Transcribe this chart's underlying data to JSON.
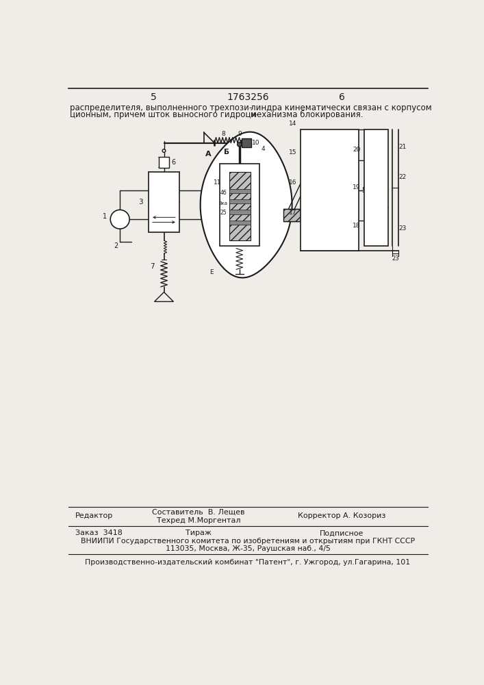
{
  "page_num_left": "5",
  "patent_num": "1763256",
  "page_num_right": "6",
  "header_text_left": "распределителя, выполненного трехпози-\nционным, причем шток выносного гидроци-",
  "header_text_right": "линдра кинематически связан с корпусом\nмеханизма блокирования.",
  "footer_line1_col1": "Редактор",
  "footer_line1_col2_a": "Составитель  В. Лещев",
  "footer_line1_col2_b": "Техред М.Моргентал",
  "footer_line1_col3": "Корректор А. Козориз",
  "footer_line2_col1": "Заказ  3418",
  "footer_line2_col2": "Тираж",
  "footer_line2_col3": "Подписное",
  "footer_vniiipi": "ВНИИПИ Государственного комитета по изобретениям и открытиям при ГКНТ СССР",
  "footer_address": "113035, Москва, Ж-35, Раушская наб., 4/5",
  "footer_publisher": "Производственно-издательский комбинат \"Патент\", г. Ужгород, ул.Гагарина, 101",
  "bg_color": "#f0ede8",
  "text_color": "#1a1a1a",
  "diagram_color": "#1a1a1a"
}
